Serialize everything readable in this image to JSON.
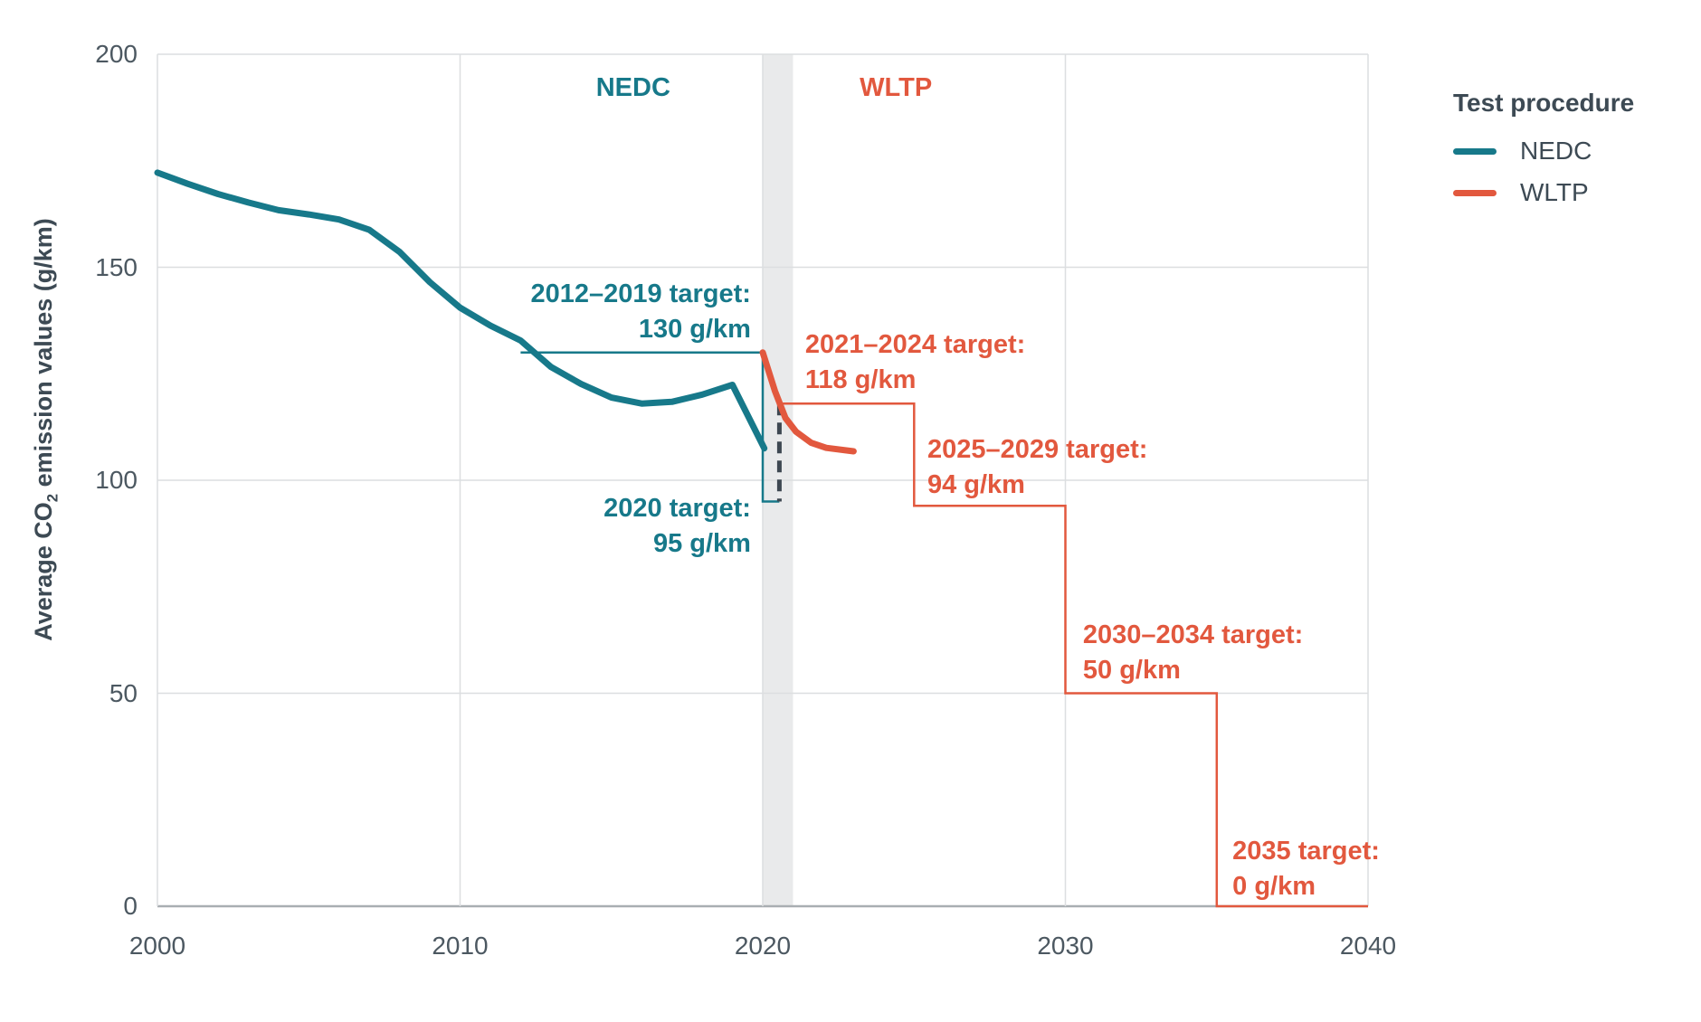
{
  "chart_data": {
    "type": "line",
    "title": "",
    "xlabel": "",
    "ylabel": "Average CO₂ emission values (g/km)",
    "ylabel_parts": {
      "prefix": "Average CO",
      "sub": "2",
      "suffix": " emission values (g/km)"
    },
    "xlim": [
      2000,
      2040
    ],
    "ylim": [
      0,
      200
    ],
    "x_ticks": [
      2000,
      2010,
      2020,
      2030,
      2040
    ],
    "y_ticks": [
      0,
      50,
      100,
      150,
      200
    ],
    "grid": true,
    "legend_position": "top-right",
    "colors": {
      "teal": "#17798a",
      "orange": "#e2583e",
      "dark_text": "#3d4a54",
      "tick_text": "#4c5861",
      "grid": "#dcdee0",
      "axis": "#a9aeb2",
      "band": "#e9eaeb",
      "dashed": "#3d4751"
    },
    "regime_band": {
      "from": 2020,
      "to": 2021
    },
    "regime_labels": [
      {
        "text": "NEDC",
        "color": "#17798a",
        "x": 2015.72,
        "y": 195.3
      },
      {
        "text": "WLTP",
        "color": "#e2583e",
        "x": 2024.4,
        "y": 195.3
      }
    ],
    "series": [
      {
        "name": "NEDC target steps",
        "kind": "target",
        "color": "#17798a",
        "points": [
          [
            2012,
            130
          ],
          [
            2020,
            130
          ],
          [
            2020,
            95
          ],
          [
            2020.55,
            95
          ]
        ]
      },
      {
        "name": "WLTP target steps",
        "kind": "target",
        "color": "#e2583e",
        "points": [
          [
            2020.55,
            118
          ],
          [
            2025,
            118
          ],
          [
            2025,
            94
          ],
          [
            2030,
            94
          ],
          [
            2030,
            50
          ],
          [
            2035,
            50
          ],
          [
            2035,
            0
          ],
          [
            2040,
            0
          ]
        ]
      },
      {
        "name": "NEDC-WLTP connector",
        "kind": "dashed",
        "color": "#3d4751",
        "points": [
          [
            2020.55,
            118
          ],
          [
            2020.55,
            95
          ]
        ]
      },
      {
        "name": "NEDC",
        "kind": "data",
        "color": "#17798a",
        "points": [
          [
            2000,
            172.2
          ],
          [
            2001,
            169.6
          ],
          [
            2002,
            167.2
          ],
          [
            2003,
            165.2
          ],
          [
            2004,
            163.4
          ],
          [
            2005,
            162.4
          ],
          [
            2006,
            161.2
          ],
          [
            2007,
            158.8
          ],
          [
            2008,
            153.6
          ],
          [
            2009,
            146.5
          ],
          [
            2010,
            140.5
          ],
          [
            2011,
            136.3
          ],
          [
            2012,
            132.8
          ],
          [
            2013,
            126.6
          ],
          [
            2014,
            122.6
          ],
          [
            2015,
            119.4
          ],
          [
            2016,
            118.0
          ],
          [
            2017,
            118.4
          ],
          [
            2018,
            120.1
          ],
          [
            2019,
            122.4
          ],
          [
            2020.05,
            107.5
          ]
        ]
      },
      {
        "name": "WLTP",
        "kind": "data",
        "color": "#e2583e",
        "points": [
          [
            2020,
            130
          ],
          [
            2020.4,
            121
          ],
          [
            2020.75,
            114.6
          ],
          [
            2021.1,
            111.4
          ],
          [
            2021.6,
            108.8
          ],
          [
            2022.1,
            107.6
          ],
          [
            2023,
            106.8
          ]
        ]
      }
    ],
    "annotations": [
      {
        "lines": [
          "2012–2019 target:",
          "130 g/km"
        ],
        "color": "#17798a",
        "align": "right",
        "x": 2019.61,
        "y": 147.8
      },
      {
        "lines": [
          "2020 target:",
          "95 g/km"
        ],
        "color": "#17798a",
        "align": "right",
        "x": 2019.61,
        "y": 97.5
      },
      {
        "lines": [
          "2021–2024 target:",
          "118 g/km"
        ],
        "color": "#e2583e",
        "align": "left",
        "x": 2021.4,
        "y": 135.9
      },
      {
        "lines": [
          "2025–2029 target:",
          "94 g/km"
        ],
        "color": "#e2583e",
        "align": "left",
        "x": 2025.44,
        "y": 111.3
      },
      {
        "lines": [
          "2030–2034 target:",
          "50 g/km"
        ],
        "color": "#e2583e",
        "align": "left",
        "x": 2030.58,
        "y": 67.8
      },
      {
        "lines": [
          "2035 target:",
          "0 g/km"
        ],
        "color": "#e2583e",
        "align": "left",
        "x": 2035.52,
        "y": 17.0
      }
    ],
    "legend": {
      "title": "Test procedure",
      "items": [
        {
          "label": "NEDC",
          "color": "#17798a"
        },
        {
          "label": "WLTP",
          "color": "#e2583e"
        }
      ]
    }
  }
}
